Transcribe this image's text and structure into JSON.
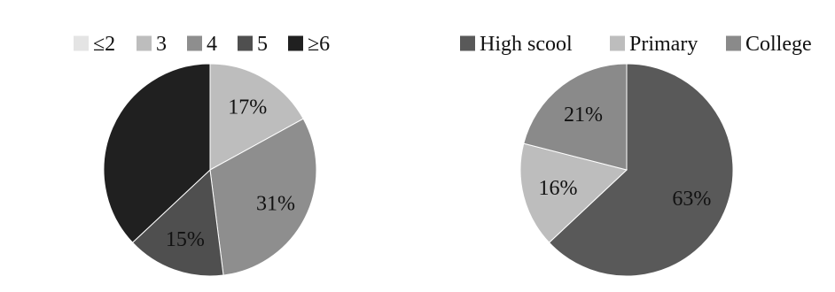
{
  "chart_data": [
    {
      "type": "pie",
      "categories": [
        "≤2",
        "3",
        "4",
        "5",
        "≥6"
      ],
      "values": [
        0,
        17,
        31,
        15,
        37
      ],
      "slice_labels": [
        "",
        "17%",
        "31%",
        "15%",
        ""
      ],
      "label_text_color": "#111111",
      "colors": [
        "#e4e4e4",
        "#bdbdbd",
        "#8e8e8e",
        "#4f4f4f",
        "#202020"
      ],
      "legend": {
        "position": "top",
        "entries": [
          "≤2",
          "3",
          "4",
          "5",
          "≥6"
        ]
      }
    },
    {
      "type": "pie",
      "categories": [
        "High scool",
        "Primary",
        "College"
      ],
      "values": [
        63,
        16,
        21
      ],
      "slice_labels": [
        "63%",
        "16%",
        "21%"
      ],
      "colors": [
        "#595959",
        "#bdbdbd",
        "#8a8a8a"
      ],
      "legend": {
        "position": "top",
        "entries": [
          "High scool",
          "Primary",
          "College"
        ]
      }
    }
  ]
}
